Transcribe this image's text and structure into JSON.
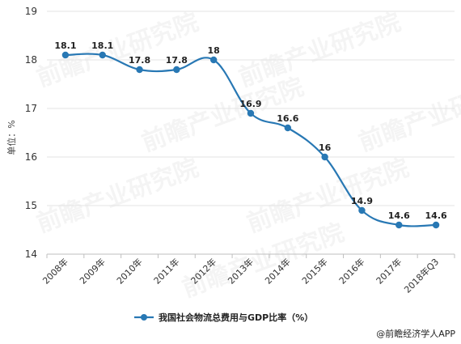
{
  "chart_data": {
    "type": "line",
    "categories": [
      "2008年",
      "2009年",
      "2010年",
      "2011年",
      "2012年",
      "2013年",
      "2014年",
      "2015年",
      "2016年",
      "2017年",
      "2018年Q3"
    ],
    "series": [
      {
        "name": "我国社会物流总费用与GDP比率（%）",
        "values": [
          18.1,
          18.1,
          17.8,
          17.8,
          18,
          16.9,
          16.6,
          16,
          14.9,
          14.6,
          14.6
        ],
        "labels": [
          "18.1",
          "18.1",
          "17.8",
          "17.8",
          "18",
          "16.9",
          "16.6",
          "16",
          "14.9",
          "14.6",
          "14.6"
        ],
        "color": "#2878B4"
      }
    ],
    "ylabel": "单位：%",
    "ylim": [
      14,
      19
    ],
    "yticks": [
      "14",
      "15",
      "16",
      "17",
      "18",
      "19"
    ],
    "grid": true,
    "legend": "bottom"
  },
  "watermark": "前瞻产业研究院",
  "credit": "@前瞻经济学人APP"
}
